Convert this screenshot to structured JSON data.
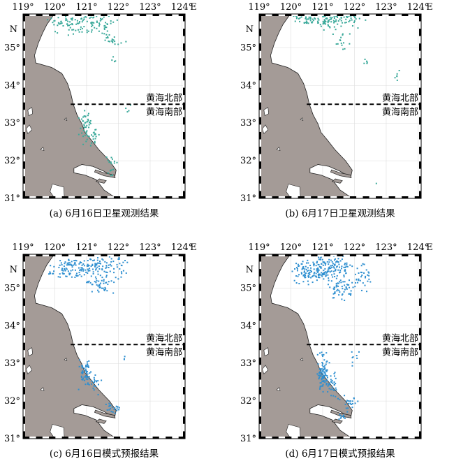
{
  "figure": {
    "lon_ticks": [
      "119°",
      "120°",
      "121°",
      "122°",
      "123°",
      "124°"
    ],
    "lat_ticks": [
      "31°",
      "32°",
      "33°",
      "34°",
      "35°"
    ],
    "east_label": "E",
    "north_label": "N",
    "region_north_label": "黄海北部",
    "region_south_label": "黄海南部",
    "boundary_latitude": 33.5,
    "land_color": "#a49b97",
    "frame_color": "#000000",
    "panels": [
      {
        "caption": "(a) 6月16日卫星观测结果",
        "dot_color": "#3aa99a",
        "show_lon_labels": true,
        "show_lat_labels": true
      },
      {
        "caption": "(b) 6月17日卫星观测结果",
        "dot_color": "#3aa99a",
        "show_lon_labels": true,
        "show_lat_labels": true
      },
      {
        "caption": "(c) 6月16日模式预报结果",
        "dot_color": "#2e8fd0",
        "show_lon_labels": true,
        "show_lat_labels": true
      },
      {
        "caption": "(d) 6月17日模式预报结果",
        "dot_color": "#2e8fd0",
        "show_lon_labels": true,
        "show_lat_labels": true
      }
    ]
  }
}
